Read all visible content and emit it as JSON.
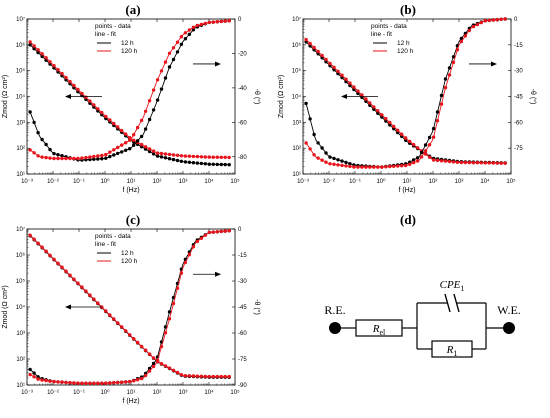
{
  "panel_labels": [
    "(a)",
    "(b)",
    "(c)",
    "(d)"
  ],
  "chart_data": [
    {
      "type": "scatter",
      "panel": "(a)",
      "xlabel": "f (Hz)",
      "ylabel_left": "Zmod (Ω cm²)",
      "ylabel_right": "-θ (°)",
      "x_scale": "log",
      "x_ticks": [
        0.001,
        0.01,
        0.1,
        1,
        10,
        100,
        1000,
        10000,
        100000
      ],
      "x_tick_labels": [
        "10⁻³",
        "10⁻²",
        "10⁻¹",
        "10⁰",
        "10¹",
        "10²",
        "10³",
        "10⁴",
        "10⁵"
      ],
      "xlim": [
        0.001,
        100000
      ],
      "y_left_scale": "log",
      "y_left_ticks": [
        10,
        100,
        1000,
        10000,
        100000,
        1000000,
        10000000
      ],
      "y_left_tick_labels": [
        "10¹",
        "10²",
        "10³",
        "10⁴",
        "10⁵",
        "10⁶",
        "10⁷"
      ],
      "ylim_left": [
        10,
        10000000
      ],
      "y_right_ticks": [
        0,
        -20,
        -40,
        -60,
        -80
      ],
      "y_right_tick_labels": [
        "0",
        "-20",
        "-40",
        "-60",
        "-80"
      ],
      "ylim_right": [
        -90,
        0
      ],
      "legend": {
        "lines": [
          "points - data",
          "line - fit"
        ],
        "entries": [
          {
            "label": "12 h",
            "color": "#000000"
          },
          {
            "label": "120 h",
            "color": "#e8141b"
          }
        ],
        "placement": "top-center"
      },
      "series": [
        {
          "name": "12 h",
          "color": "#000000",
          "axis": "left",
          "x": [
            0.00132,
            0.01,
            0.1,
            1,
            10,
            100,
            1000,
            10000,
            60000
          ],
          "y": [
            1000000,
            140000,
            14000,
            1500,
            200,
            50,
            30,
            24,
            23
          ]
        },
        {
          "name": "120 h",
          "color": "#e8141b",
          "axis": "left",
          "x": [
            0.00132,
            0.01,
            0.1,
            1,
            10,
            100,
            1000,
            10000,
            60000
          ],
          "y": [
            1300000,
            170000,
            17000,
            1800,
            230,
            65,
            50,
            45,
            44
          ]
        },
        {
          "name": "12 h",
          "color": "#000000",
          "axis": "right",
          "x": [
            0.00132,
            0.003,
            0.01,
            0.1,
            1,
            10,
            30,
            100,
            300,
            1000,
            3000,
            10000,
            60000
          ],
          "y": [
            -54,
            -68,
            -78,
            -82,
            -81,
            -75,
            -67,
            -48,
            -28,
            -13,
            -5,
            -2,
            -1
          ]
        },
        {
          "name": "120 h",
          "color": "#e8141b",
          "axis": "right",
          "x": [
            0.00132,
            0.003,
            0.01,
            0.1,
            1,
            10,
            30,
            100,
            300,
            1000,
            3000,
            10000,
            60000
          ],
          "y": [
            -76,
            -80,
            -81,
            -81,
            -79,
            -70,
            -57,
            -36,
            -20,
            -9,
            -4,
            -2,
            -1
          ]
        }
      ],
      "annotations": [
        "left arrow to Zmod curves",
        "right arrow to phase curves"
      ]
    },
    {
      "type": "scatter",
      "panel": "(b)",
      "xlabel": "f (Hz)",
      "ylabel_left": "Zmod (Ω cm²)",
      "ylabel_right": "-θ (°)",
      "x_scale": "log",
      "x_ticks": [
        0.001,
        0.01,
        0.1,
        1,
        10,
        100,
        1000,
        10000,
        100000
      ],
      "x_tick_labels": [
        "10⁻³",
        "10⁻²",
        "10⁻¹",
        "10⁰",
        "10¹",
        "10²",
        "10³",
        "10⁴",
        "10⁵"
      ],
      "xlim": [
        0.001,
        100000
      ],
      "y_left_scale": "log",
      "y_left_ticks": [
        10,
        100,
        1000,
        10000,
        100000,
        1000000,
        10000000
      ],
      "y_left_tick_labels": [
        "10¹",
        "10²",
        "10³",
        "10⁴",
        "10⁵",
        "10⁶",
        "10⁷"
      ],
      "ylim_left": [
        10,
        10000000
      ],
      "y_right_ticks": [
        0,
        -15,
        -30,
        -45,
        -60,
        -75
      ],
      "y_right_tick_labels": [
        "0",
        "-15",
        "-30",
        "-45",
        "-60",
        "-75"
      ],
      "ylim_right": [
        -90,
        0
      ],
      "legend": {
        "lines": [
          "points - data",
          "line - fit"
        ],
        "entries": [
          {
            "label": "12 h",
            "color": "#000000"
          },
          {
            "label": "120 h",
            "color": "#e8141b"
          }
        ],
        "placement": "top-center"
      },
      "series": [
        {
          "name": "12 h",
          "color": "#000000",
          "axis": "left",
          "x": [
            0.00132,
            0.01,
            0.1,
            1,
            10,
            100,
            1000,
            10000,
            60000
          ],
          "y": [
            1300000,
            170000,
            17000,
            1700,
            180,
            40,
            30,
            28,
            27
          ]
        },
        {
          "name": "120 h",
          "color": "#e8141b",
          "axis": "left",
          "x": [
            0.00132,
            0.01,
            0.1,
            1,
            10,
            100,
            1000,
            10000,
            60000
          ],
          "y": [
            1600000,
            210000,
            21000,
            2100,
            220,
            35,
            28,
            27,
            26
          ]
        },
        {
          "name": "12 h",
          "color": "#000000",
          "axis": "right",
          "x": [
            0.00132,
            0.003,
            0.01,
            0.1,
            1,
            10,
            30,
            100,
            300,
            1000,
            3000,
            10000,
            60000
          ],
          "y": [
            -49,
            -70,
            -80,
            -85,
            -86,
            -84,
            -80,
            -65,
            -35,
            -13,
            -4,
            -1,
            0
          ]
        },
        {
          "name": "120 h",
          "color": "#e8141b",
          "axis": "right",
          "x": [
            0.00132,
            0.003,
            0.01,
            0.1,
            1,
            10,
            30,
            100,
            300,
            1000,
            3000,
            10000,
            60000
          ],
          "y": [
            -72,
            -80,
            -84,
            -86,
            -86,
            -85,
            -82,
            -70,
            -40,
            -15,
            -5,
            -1,
            0
          ]
        }
      ],
      "annotations": [
        "left arrow to Zmod curves",
        "right arrow to phase curves"
      ]
    },
    {
      "type": "scatter",
      "panel": "(c)",
      "xlabel": "f (Hz)",
      "ylabel_left": "Zmod (Ω cm²)",
      "ylabel_right": "-θ (°)",
      "x_scale": "log",
      "x_ticks": [
        0.001,
        0.01,
        0.1,
        1,
        10,
        100,
        1000,
        10000,
        100000
      ],
      "x_tick_labels": [
        "10⁻³",
        "10⁻²",
        "10⁻¹",
        "10⁰",
        "10¹",
        "10²",
        "10³",
        "10⁴",
        "10⁵"
      ],
      "xlim": [
        0.001,
        100000
      ],
      "y_left_scale": "log",
      "y_left_ticks": [
        10,
        100,
        1000,
        10000,
        100000,
        1000000,
        10000000
      ],
      "y_left_tick_labels": [
        "10¹",
        "10²",
        "10³",
        "10⁴",
        "10⁵",
        "10⁶",
        "10⁷"
      ],
      "ylim_left": [
        10,
        10000000
      ],
      "y_right_ticks": [
        0,
        -15,
        -30,
        -45,
        -60,
        -75,
        -90
      ],
      "y_right_tick_labels": [
        "0",
        "-15",
        "-30",
        "-45",
        "-60",
        "-75",
        "-90"
      ],
      "ylim_right": [
        -90,
        0
      ],
      "legend": {
        "lines": [
          "points - data",
          "line - fit"
        ],
        "entries": [
          {
            "label": "12 h",
            "color": "#000000"
          },
          {
            "label": "120 h",
            "color": "#e8141b"
          }
        ],
        "placement": "top-center"
      },
      "series": [
        {
          "name": "12 h",
          "color": "#000000",
          "axis": "left",
          "x": [
            0.00132,
            0.01,
            0.1,
            1,
            10,
            100,
            1000,
            10000,
            60000
          ],
          "y": [
            5500000,
            720000,
            72000,
            7200,
            730,
            80,
            22,
            20,
            20
          ]
        },
        {
          "name": "120 h",
          "color": "#e8141b",
          "axis": "left",
          "x": [
            0.00132,
            0.01,
            0.1,
            1,
            10,
            100,
            1000,
            10000,
            60000
          ],
          "y": [
            5800000,
            750000,
            75000,
            7500,
            760,
            82,
            23,
            21,
            21
          ]
        },
        {
          "name": "12 h",
          "color": "#000000",
          "axis": "right",
          "x": [
            0.00132,
            0.003,
            0.01,
            0.1,
            1,
            10,
            30,
            100,
            300,
            1000,
            3000,
            10000,
            60000
          ],
          "y": [
            -81,
            -86,
            -88,
            -89,
            -89,
            -88,
            -85,
            -75,
            -48,
            -20,
            -7,
            -2,
            -1
          ]
        },
        {
          "name": "120 h",
          "color": "#e8141b",
          "axis": "right",
          "x": [
            0.00132,
            0.003,
            0.01,
            0.1,
            1,
            10,
            30,
            100,
            300,
            1000,
            3000,
            10000,
            60000
          ],
          "y": [
            -84,
            -87,
            -88,
            -89,
            -89,
            -88,
            -86,
            -77,
            -52,
            -22,
            -8,
            -2,
            -1
          ]
        }
      ],
      "annotations": [
        "left arrow to Zmod curves",
        "right arrow to phase curves"
      ]
    }
  ],
  "circuit": {
    "panel": "(d)",
    "left_terminal": "R.E.",
    "right_terminal": "W.E.",
    "series_resistor": {
      "main": "R",
      "sub": "el"
    },
    "cpe": {
      "main": "CPE",
      "sub": "1"
    },
    "parallel_resistor": {
      "main": "R",
      "sub": "1"
    }
  }
}
